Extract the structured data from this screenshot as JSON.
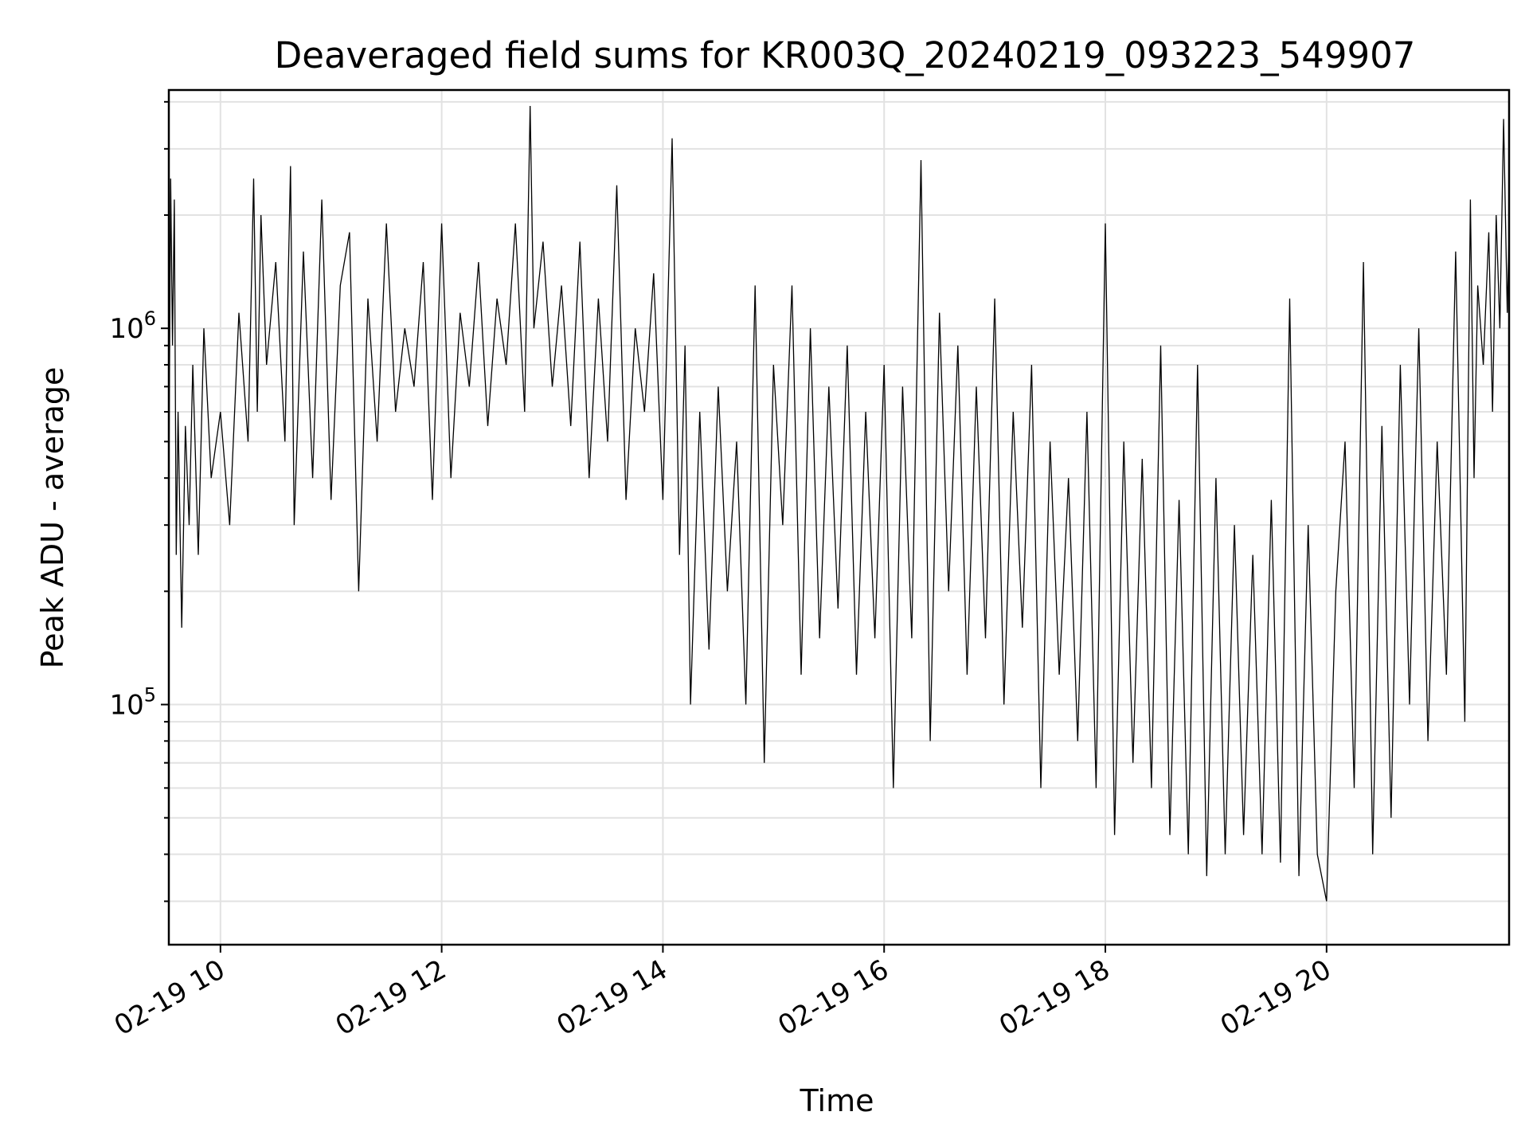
{
  "chart_data": {
    "type": "line",
    "title": "Deaveraged field sums for KR003Q_20240219_093223_549907",
    "xlabel": "Time",
    "ylabel": "Peak ADU - average",
    "yscale": "log",
    "ylim": [
      23000,
      4300000
    ],
    "xlim": [
      "2024-02-19T09:32",
      "2024-02-19T21:39"
    ],
    "x_ticks": [
      {
        "value": "2024-02-19T10:00",
        "label": "02-19 10"
      },
      {
        "value": "2024-02-19T12:00",
        "label": "02-19 12"
      },
      {
        "value": "2024-02-19T14:00",
        "label": "02-19 14"
      },
      {
        "value": "2024-02-19T16:00",
        "label": "02-19 16"
      },
      {
        "value": "2024-02-19T18:00",
        "label": "02-19 18"
      },
      {
        "value": "2024-02-19T20:00",
        "label": "02-19 20"
      }
    ],
    "y_ticks": [
      {
        "value": 100000,
        "base": "10",
        "exp": "5"
      },
      {
        "value": 1000000,
        "base": "10",
        "exp": "6"
      }
    ],
    "grid": true,
    "color": "#000000",
    "series": [
      {
        "x": [
          "2024-02-19T09:32",
          "2024-02-19T09:33",
          "2024-02-19T09:34",
          "2024-02-19T09:35",
          "2024-02-19T09:36",
          "2024-02-19T09:37",
          "2024-02-19T09:39",
          "2024-02-19T09:41",
          "2024-02-19T09:43",
          "2024-02-19T09:45",
          "2024-02-19T09:48",
          "2024-02-19T09:51",
          "2024-02-19T09:55",
          "2024-02-19T10:00",
          "2024-02-19T10:05",
          "2024-02-19T10:10",
          "2024-02-19T10:15",
          "2024-02-19T10:18",
          "2024-02-19T10:20",
          "2024-02-19T10:22",
          "2024-02-19T10:25",
          "2024-02-19T10:30",
          "2024-02-19T10:35",
          "2024-02-19T10:38",
          "2024-02-19T10:40",
          "2024-02-19T10:45",
          "2024-02-19T10:50",
          "2024-02-19T10:55",
          "2024-02-19T11:00",
          "2024-02-19T11:05",
          "2024-02-19T11:10",
          "2024-02-19T11:15",
          "2024-02-19T11:20",
          "2024-02-19T11:25",
          "2024-02-19T11:30",
          "2024-02-19T11:35",
          "2024-02-19T11:40",
          "2024-02-19T11:45",
          "2024-02-19T11:50",
          "2024-02-19T11:55",
          "2024-02-19T12:00",
          "2024-02-19T12:05",
          "2024-02-19T12:10",
          "2024-02-19T12:15",
          "2024-02-19T12:20",
          "2024-02-19T12:25",
          "2024-02-19T12:30",
          "2024-02-19T12:35",
          "2024-02-19T12:40",
          "2024-02-19T12:45",
          "2024-02-19T12:48",
          "2024-02-19T12:50",
          "2024-02-19T12:55",
          "2024-02-19T13:00",
          "2024-02-19T13:05",
          "2024-02-19T13:10",
          "2024-02-19T13:15",
          "2024-02-19T13:20",
          "2024-02-19T13:25",
          "2024-02-19T13:30",
          "2024-02-19T13:35",
          "2024-02-19T13:40",
          "2024-02-19T13:45",
          "2024-02-19T13:50",
          "2024-02-19T13:55",
          "2024-02-19T14:00",
          "2024-02-19T14:05",
          "2024-02-19T14:09",
          "2024-02-19T14:12",
          "2024-02-19T14:15",
          "2024-02-19T14:20",
          "2024-02-19T14:25",
          "2024-02-19T14:30",
          "2024-02-19T14:35",
          "2024-02-19T14:40",
          "2024-02-19T14:45",
          "2024-02-19T14:50",
          "2024-02-19T14:55",
          "2024-02-19T15:00",
          "2024-02-19T15:05",
          "2024-02-19T15:10",
          "2024-02-19T15:15",
          "2024-02-19T15:20",
          "2024-02-19T15:25",
          "2024-02-19T15:30",
          "2024-02-19T15:35",
          "2024-02-19T15:40",
          "2024-02-19T15:45",
          "2024-02-19T15:50",
          "2024-02-19T15:55",
          "2024-02-19T16:00",
          "2024-02-19T16:05",
          "2024-02-19T16:10",
          "2024-02-19T16:15",
          "2024-02-19T16:20",
          "2024-02-19T16:25",
          "2024-02-19T16:30",
          "2024-02-19T16:35",
          "2024-02-19T16:40",
          "2024-02-19T16:45",
          "2024-02-19T16:50",
          "2024-02-19T16:55",
          "2024-02-19T17:00",
          "2024-02-19T17:05",
          "2024-02-19T17:10",
          "2024-02-19T17:15",
          "2024-02-19T17:20",
          "2024-02-19T17:25",
          "2024-02-19T17:30",
          "2024-02-19T17:35",
          "2024-02-19T17:40",
          "2024-02-19T17:45",
          "2024-02-19T17:50",
          "2024-02-19T17:55",
          "2024-02-19T18:00",
          "2024-02-19T18:05",
          "2024-02-19T18:10",
          "2024-02-19T18:15",
          "2024-02-19T18:20",
          "2024-02-19T18:25",
          "2024-02-19T18:30",
          "2024-02-19T18:35",
          "2024-02-19T18:40",
          "2024-02-19T18:45",
          "2024-02-19T18:50",
          "2024-02-19T18:55",
          "2024-02-19T19:00",
          "2024-02-19T19:05",
          "2024-02-19T19:10",
          "2024-02-19T19:15",
          "2024-02-19T19:20",
          "2024-02-19T19:25",
          "2024-02-19T19:30",
          "2024-02-19T19:35",
          "2024-02-19T19:40",
          "2024-02-19T19:45",
          "2024-02-19T19:50",
          "2024-02-19T19:55",
          "2024-02-19T20:00",
          "2024-02-19T20:05",
          "2024-02-19T20:10",
          "2024-02-19T20:15",
          "2024-02-19T20:20",
          "2024-02-19T20:25",
          "2024-02-19T20:30",
          "2024-02-19T20:35",
          "2024-02-19T20:40",
          "2024-02-19T20:45",
          "2024-02-19T20:50",
          "2024-02-19T20:55",
          "2024-02-19T21:00",
          "2024-02-19T21:05",
          "2024-02-19T21:10",
          "2024-02-19T21:15",
          "2024-02-19T21:18",
          "2024-02-19T21:20",
          "2024-02-19T21:22",
          "2024-02-19T21:25",
          "2024-02-19T21:28",
          "2024-02-19T21:30",
          "2024-02-19T21:32",
          "2024-02-19T21:34",
          "2024-02-19T21:36",
          "2024-02-19T21:38",
          "2024-02-19T21:39"
        ],
        "values": [
          380000,
          2500000,
          900000,
          2200000,
          250000,
          600000,
          160000,
          550000,
          300000,
          800000,
          250000,
          1000000,
          400000,
          600000,
          300000,
          1100000,
          500000,
          2500000,
          600000,
          2000000,
          800000,
          1500000,
          500000,
          2700000,
          300000,
          1600000,
          400000,
          2200000,
          350000,
          1300000,
          1800000,
          200000,
          1200000,
          500000,
          1900000,
          600000,
          1000000,
          700000,
          1500000,
          350000,
          1900000,
          400000,
          1100000,
          700000,
          1500000,
          550000,
          1200000,
          800000,
          1900000,
          600000,
          3900000,
          1000000,
          1700000,
          700000,
          1300000,
          550000,
          1700000,
          400000,
          1200000,
          500000,
          2400000,
          350000,
          1000000,
          600000,
          1400000,
          350000,
          3200000,
          250000,
          900000,
          100000,
          600000,
          140000,
          700000,
          200000,
          500000,
          100000,
          1300000,
          70000,
          800000,
          300000,
          1300000,
          120000,
          1000000,
          150000,
          700000,
          180000,
          900000,
          120000,
          600000,
          150000,
          800000,
          60000,
          700000,
          150000,
          2800000,
          80000,
          1100000,
          200000,
          900000,
          120000,
          700000,
          150000,
          1200000,
          100000,
          600000,
          160000,
          800000,
          60000,
          500000,
          120000,
          400000,
          80000,
          600000,
          60000,
          1900000,
          45000,
          500000,
          70000,
          450000,
          60000,
          900000,
          45000,
          350000,
          40000,
          800000,
          35000,
          400000,
          40000,
          300000,
          45000,
          250000,
          40000,
          350000,
          38000,
          1200000,
          35000,
          300000,
          40000,
          30000,
          200000,
          500000,
          60000,
          1500000,
          40000,
          550000,
          50000,
          800000,
          100000,
          1000000,
          80000,
          500000,
          120000,
          1600000,
          90000,
          2200000,
          400000,
          1300000,
          800000,
          1800000,
          600000,
          2000000,
          1000000,
          3600000,
          1100000,
          1800000
        ]
      }
    ]
  }
}
